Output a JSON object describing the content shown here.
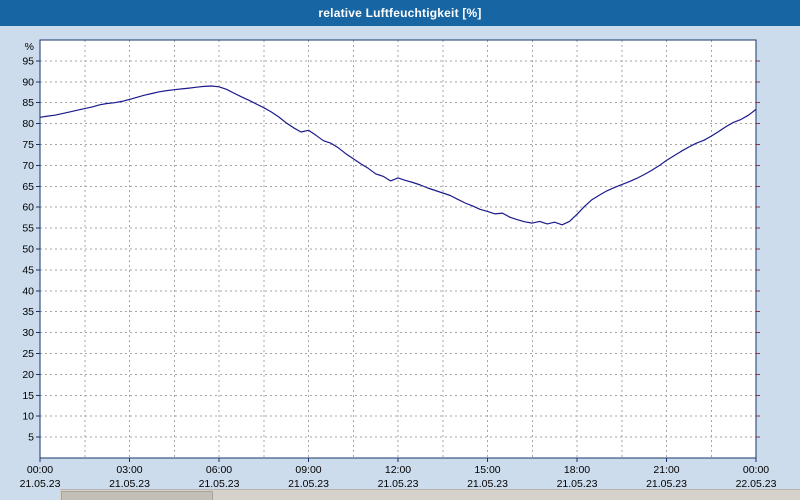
{
  "title": "relative Luftfeuchtigkeit [%]",
  "colors": {
    "titlebar_bg": "#1765a3",
    "titlebar_text": "#ffffff",
    "window_bg": "#cddcec",
    "plot_bg": "#ffffff",
    "frame": "#16366b",
    "grid": "#a6a6a6",
    "line": "#1a1a8c",
    "right_tick": "#8b3a3a",
    "label": "#000000"
  },
  "chart_data": {
    "type": "line",
    "title": "relative Luftfeuchtigkeit [%]",
    "ylabel": "%",
    "xlabel": "",
    "ylim": [
      0,
      100
    ],
    "y_ticks": [
      5,
      10,
      15,
      20,
      25,
      30,
      35,
      40,
      45,
      50,
      55,
      60,
      65,
      70,
      75,
      80,
      85,
      90,
      95
    ],
    "grid": "dashed",
    "legend": "none",
    "x_tick_times": [
      "00:00",
      "03:00",
      "06:00",
      "09:00",
      "12:00",
      "15:00",
      "18:00",
      "21:00",
      "00:00"
    ],
    "x_tick_dates": [
      "21.05.23",
      "21.05.23",
      "21.05.23",
      "21.05.23",
      "21.05.23",
      "21.05.23",
      "21.05.23",
      "21.05.23",
      "22.05.23"
    ],
    "x_tick_hours": [
      0,
      3,
      6,
      9,
      12,
      15,
      18,
      21,
      24
    ],
    "x_minor_step_hours": 1.5,
    "x_start_hour": 0,
    "x_end_hour": 24,
    "x_step_hours": 0.25,
    "series": [
      {
        "name": "relative Luftfeuchtigkeit",
        "values": [
          81.5,
          81.8,
          82.0,
          82.4,
          82.8,
          83.2,
          83.6,
          84.0,
          84.5,
          84.8,
          85.0,
          85.3,
          85.8,
          86.3,
          86.8,
          87.2,
          87.6,
          87.9,
          88.1,
          88.3,
          88.5,
          88.7,
          88.9,
          89.0,
          88.8,
          88.2,
          87.3,
          86.4,
          85.6,
          84.7,
          83.8,
          82.8,
          81.6,
          80.2,
          79.0,
          78.0,
          78.4,
          77.2,
          75.9,
          75.3,
          74.2,
          72.8,
          71.6,
          70.4,
          69.3,
          68.0,
          67.4,
          66.3,
          67.0,
          66.4,
          65.9,
          65.3,
          64.6,
          64.0,
          63.4,
          62.8,
          61.9,
          61.0,
          60.3,
          59.5,
          59.0,
          58.4,
          58.6,
          57.6,
          57.0,
          56.5,
          56.2,
          56.6,
          56.0,
          56.4,
          55.8,
          56.6,
          58.3,
          60.2,
          61.8,
          62.9,
          63.9,
          64.7,
          65.4,
          66.1,
          66.9,
          67.8,
          68.8,
          69.9,
          71.2,
          72.3,
          73.4,
          74.4,
          75.3,
          76.0,
          77.0,
          78.1,
          79.3,
          80.3,
          81.0,
          82.0,
          83.4
        ]
      }
    ]
  }
}
